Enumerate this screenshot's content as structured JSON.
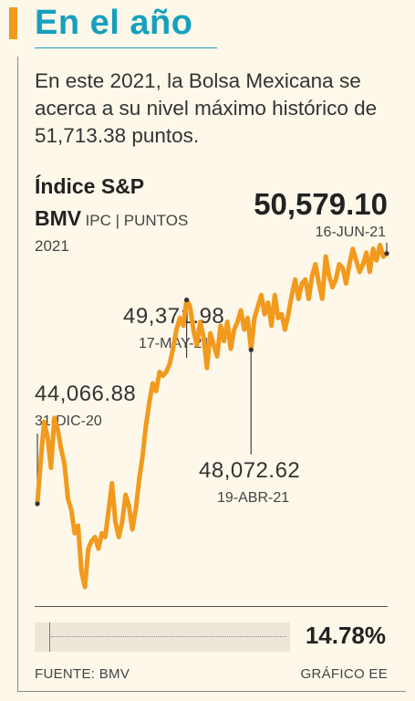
{
  "header": {
    "title": "En el año",
    "subtitle": "En este 2021, la Bolsa Mexicana se acerca a su nivel máximo histórico de 51,713.38 puntos."
  },
  "index": {
    "name_line1": "Índice S&P",
    "name_bold2": "BMV",
    "name_rest2": "IPC | PUNTOS",
    "year": "2021"
  },
  "colors": {
    "accent": "#f29a1e",
    "title": "#17a0bd",
    "line": "#f29a1e",
    "background": "#fdf8ea"
  },
  "chart_data": {
    "type": "line",
    "ylim": [
      41500,
      51000
    ],
    "series": [
      {
        "values": [
          44066.88,
          45200,
          46200,
          45800,
          45000,
          46300,
          46000,
          45500,
          45100,
          44200,
          43900,
          43300,
          43500,
          42300,
          41900,
          42900,
          43100,
          43200,
          42900,
          43300,
          43200,
          43900,
          44600,
          43600,
          43200,
          43600,
          44300,
          44000,
          43400,
          43900,
          44700,
          45300,
          46100,
          46700,
          47200,
          47000,
          47500,
          47400,
          47500,
          47700,
          48100,
          48600,
          48900,
          48700,
          49371.98,
          49200,
          48600,
          48200,
          48800,
          48400,
          47600,
          48500,
          48200,
          47900,
          48700,
          48300,
          48800,
          48100,
          48600,
          48800,
          49100,
          48600,
          48900,
          48072.62,
          48900,
          49200,
          49500,
          49000,
          49300,
          48700,
          49500,
          48900,
          49000,
          48600,
          49000,
          49500,
          49900,
          49400,
          49800,
          49900,
          49400,
          50000,
          50300,
          49800,
          49400,
          50500,
          50000,
          49700,
          49900,
          50300,
          50200,
          49800,
          50300,
          50700,
          50400,
          50100,
          50300,
          50600,
          50100,
          50700,
          50400,
          50800,
          50500,
          50579.1
        ]
      }
    ],
    "annotations": [
      {
        "label": "44,066.88",
        "date": "31-DIC-20",
        "index": 0
      },
      {
        "label": "48,072.62",
        "date": "19-ABR-21",
        "index": 63
      },
      {
        "label": "49,371.98",
        "date": "17-MAY-21",
        "index": 44
      },
      {
        "label": "50,579.10",
        "date": "16-JUN-21",
        "index": 103
      }
    ]
  },
  "summary": {
    "change_pct": "14.78%",
    "change_fraction": 0.1478
  },
  "footer": {
    "source": "FUENTE: BMV",
    "credit": "GRÁFICO EE"
  }
}
